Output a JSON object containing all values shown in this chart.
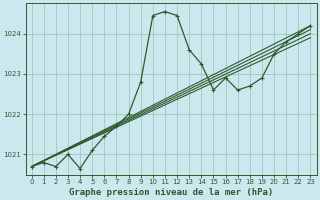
{
  "title": "Graphe pression niveau de la mer (hPa)",
  "bg_color": "#cce8ee",
  "grid_color": "#99ccbb",
  "line_color": "#2d5a2d",
  "xlim": [
    -0.5,
    23.5
  ],
  "ylim": [
    1020.5,
    1024.75
  ],
  "yticks": [
    1021,
    1022,
    1023,
    1024
  ],
  "xticks": [
    0,
    1,
    2,
    3,
    4,
    5,
    6,
    7,
    8,
    9,
    10,
    11,
    12,
    13,
    14,
    15,
    16,
    17,
    18,
    19,
    20,
    21,
    22,
    23
  ],
  "series_main": [
    1020.7,
    1020.8,
    1020.7,
    1021.0,
    1020.65,
    1021.1,
    1021.45,
    1021.7,
    1022.0,
    1022.8,
    1024.45,
    1024.55,
    1024.45,
    1023.6,
    1023.25,
    1022.6,
    1022.9,
    1022.6,
    1022.7,
    1022.9,
    1023.5,
    1023.8,
    1024.0,
    1024.2
  ],
  "trend_lines": [
    {
      "x0": 0,
      "y0": 1020.7,
      "x1": 23,
      "y1": 1024.2
    },
    {
      "x0": 0,
      "y0": 1020.7,
      "x1": 23,
      "y1": 1024.1
    },
    {
      "x0": 0,
      "y0": 1020.7,
      "x1": 23,
      "y1": 1024.0
    },
    {
      "x0": 0,
      "y0": 1020.7,
      "x1": 23,
      "y1": 1023.9
    }
  ],
  "title_fontsize": 6.5,
  "tick_fontsize": 5.0,
  "marker": "+",
  "markersize": 3.0,
  "linewidth": 0.9,
  "trend_linewidth": 0.8
}
